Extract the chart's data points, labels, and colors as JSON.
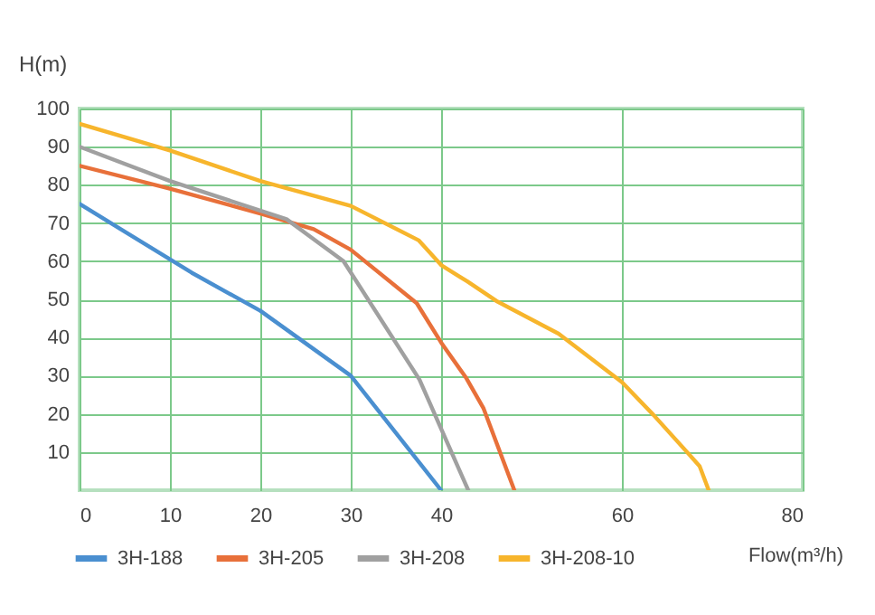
{
  "chart_data": {
    "type": "line",
    "xlabel": "Flow(m³/h)",
    "ylabel": "H(m)",
    "xlim": [
      0,
      80
    ],
    "xticks": [
      0,
      10,
      20,
      30,
      40,
      60,
      80
    ],
    "ylim": [
      0,
      100
    ],
    "yticks": [
      10,
      20,
      30,
      40,
      50,
      60,
      70,
      80,
      90,
      100
    ],
    "grid": true,
    "legend": "bottom",
    "marker": "none",
    "line_style": "solid",
    "series": [
      {
        "name": "3H-188",
        "color": "#4a8fd0",
        "x": [
          0,
          12.4,
          20,
          30,
          40
        ],
        "values": [
          75,
          57,
          47,
          30,
          0
        ]
      },
      {
        "name": "3H-205",
        "color": "#e8703a",
        "x": [
          0,
          10,
          20,
          25.9,
          30,
          37.3,
          40,
          42.8,
          44.7,
          48.1
        ],
        "values": [
          85,
          79,
          72.5,
          68.4,
          63,
          49,
          38.7,
          29.3,
          21.4,
          0
        ]
      },
      {
        "name": "3H-208",
        "color": "#a0a0a0",
        "x": [
          0,
          10,
          22.9,
          29.2,
          37.6,
          43
        ],
        "values": [
          90,
          81,
          71,
          60,
          29,
          0
        ]
      },
      {
        "name": "3H-208-10",
        "color": "#f7b52c",
        "x": [
          0,
          10,
          20,
          30,
          37.5,
          40,
          42.9,
          46.1,
          53,
          60,
          63.5,
          68.6,
          69.6
        ],
        "values": [
          96,
          89,
          81,
          74.5,
          65.5,
          59,
          54.7,
          49.6,
          41,
          28.3,
          19.7,
          6.3,
          0
        ]
      }
    ]
  }
}
